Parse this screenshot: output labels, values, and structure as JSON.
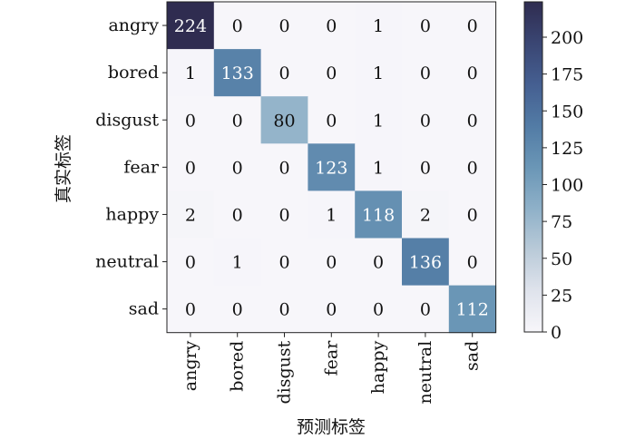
{
  "chart_data": {
    "type": "heatmap",
    "title": "",
    "xlabel": "预测标签",
    "ylabel": "真实标签",
    "x_categories": [
      "angry",
      "bored",
      "disgust",
      "fear",
      "happy",
      "neutral",
      "sad"
    ],
    "y_categories": [
      "angry",
      "bored",
      "disgust",
      "fear",
      "happy",
      "neutral",
      "sad"
    ],
    "values": [
      [
        224,
        0,
        0,
        0,
        1,
        0,
        0
      ],
      [
        1,
        133,
        0,
        0,
        1,
        0,
        0
      ],
      [
        0,
        0,
        80,
        0,
        1,
        0,
        0
      ],
      [
        0,
        0,
        0,
        123,
        1,
        0,
        0
      ],
      [
        2,
        0,
        0,
        1,
        118,
        2,
        0
      ],
      [
        0,
        1,
        0,
        0,
        0,
        136,
        0
      ],
      [
        0,
        0,
        0,
        0,
        0,
        0,
        112
      ]
    ],
    "colorbar": {
      "range": [
        0,
        224
      ],
      "ticks": [
        0,
        25,
        50,
        75,
        100,
        125,
        150,
        175,
        200
      ],
      "colormap": [
        "#f7f6fa",
        "#dfe3ec",
        "#b9cad8",
        "#8eb0c8",
        "#6a96b6",
        "#527ba5",
        "#455f91",
        "#3a4673",
        "#2f2c50"
      ]
    },
    "grid": false
  }
}
